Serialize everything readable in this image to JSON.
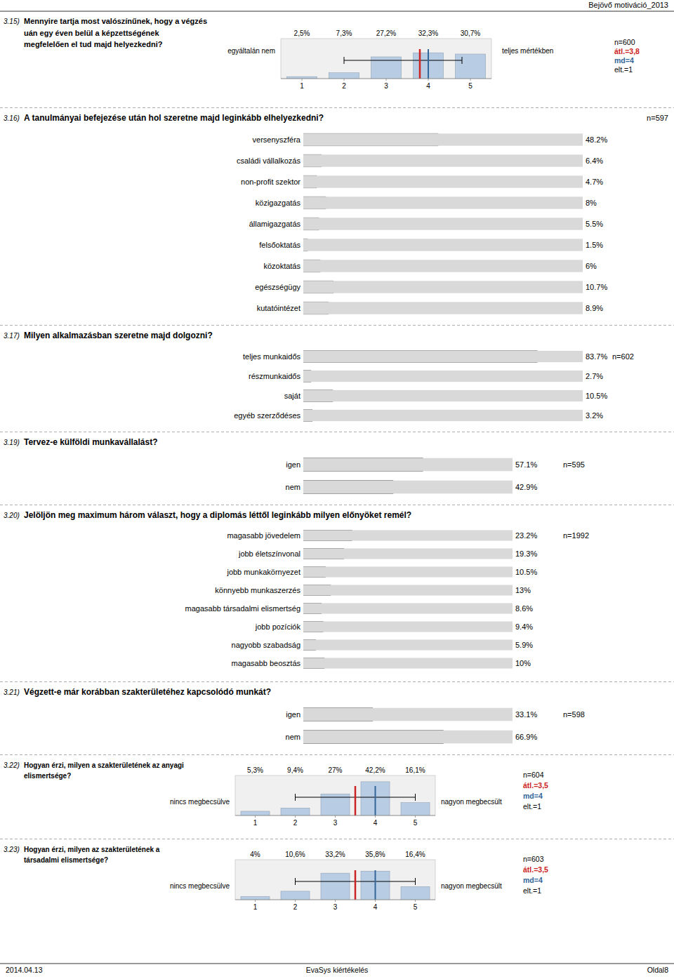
{
  "header": "Bejövő motiváció_2013",
  "footer": {
    "left": "2014.04.13",
    "center": "EvaSys kiértékelés",
    "right": "Oldal8"
  },
  "chart_data": [
    {
      "type": "bar",
      "number": "3.15)",
      "title": "Mennyire tartja most valószínűnek, hogy a végzés\nuán egy éven belül a képzettségének\nmegfelelően el tud majd helyezkedni?",
      "left_label": "egyáltalán nem",
      "right_label": "teljes mértékben",
      "x": [
        1,
        2,
        3,
        4,
        5
      ],
      "values": [
        2.5,
        7.3,
        27.2,
        32.3,
        30.7
      ],
      "value_labels": [
        "2,5%",
        "7,3%",
        "27,2%",
        "32,3%",
        "30,7%"
      ],
      "data_labels": true,
      "xlim": [
        0.5,
        5.5
      ],
      "xticks": [
        1,
        2,
        3,
        4,
        5
      ],
      "ylim": [
        0,
        50
      ],
      "tick_labels": "x",
      "color": "#b8cce4",
      "mean": {
        "value": 3.8,
        "label": "átl.=3,8",
        "color": "#cc2222"
      },
      "median": {
        "value": 4.0,
        "label": "md=4",
        "color": "#336699"
      },
      "error_bar": [
        2.0,
        4.8
      ],
      "n_label": "n=600",
      "sd_label": "elt.=1"
    },
    {
      "type": "bar",
      "orientation": "horizontal",
      "number": "3.16)",
      "title": "A tanulmányai befejezése után hol szeretne majd leginkább elhelyezkedni?",
      "n_label": "n=597",
      "categories": [
        "versenyszféra",
        "családi vállalkozás",
        "non-profit szektor",
        "közigazgatás",
        "államigazgatás",
        "felsőoktatás",
        "közoktatás",
        "egészségügy",
        "kutatóintézet"
      ],
      "values": [
        48.2,
        6.4,
        4.7,
        8.0,
        5.5,
        1.5,
        6.0,
        10.7,
        8.9
      ],
      "value_labels": [
        "48.2%",
        "6.4%",
        "4.7%",
        "8%",
        "5.5%",
        "1.5%",
        "6%",
        "10.7%",
        "8.9%"
      ],
      "data_labels": true,
      "xlim": [
        0,
        100
      ],
      "tick_labels": "y"
    },
    {
      "type": "bar",
      "orientation": "horizontal",
      "number": "3.17)",
      "title": "Milyen alkalmazásban szeretne majd dolgozni?",
      "n_label": "n=602",
      "categories": [
        "teljes munkaidős",
        "részmunkaidős",
        "saját",
        "egyéb szerződéses"
      ],
      "values": [
        83.7,
        2.7,
        10.5,
        3.2
      ],
      "value_labels": [
        "83.7%",
        "2.7%",
        "10.5%",
        "3.2%"
      ],
      "data_labels": true,
      "xlim": [
        0,
        100
      ],
      "tick_labels": "y"
    },
    {
      "type": "bar",
      "orientation": "horizontal",
      "number": "3.19)",
      "title": "Tervez-e külföldi munkavállalást?",
      "n_label": "n=595",
      "categories": [
        "igen",
        "nem"
      ],
      "values": [
        57.1,
        42.9
      ],
      "value_labels": [
        "57.1%",
        "42.9%"
      ],
      "data_labels": true,
      "xlim": [
        0,
        100
      ],
      "tick_labels": "y"
    },
    {
      "type": "bar",
      "orientation": "horizontal",
      "number": "3.20)",
      "title": "Jelöljön meg maximum három választ, hogy a diplomás léttől leginkább milyen előnyöket remél?",
      "n_label": "n=1992",
      "categories": [
        "magasabb jövedelem",
        "jobb életszínvonal",
        "jobb munkakörnyezet",
        "könnyebb munkaszerzés",
        "magasabb társadalmi elismertség",
        "jobb pozíciók",
        "nagyobb szabadság",
        "magasabb beosztás"
      ],
      "values": [
        23.2,
        19.3,
        10.5,
        13.0,
        8.6,
        9.4,
        5.9,
        10.0
      ],
      "value_labels": [
        "23.2%",
        "19.3%",
        "10.5%",
        "13%",
        "8.6%",
        "9.4%",
        "5.9%",
        "10%"
      ],
      "data_labels": true,
      "xlim": [
        0,
        100
      ],
      "tick_labels": "y"
    },
    {
      "type": "bar",
      "orientation": "horizontal",
      "number": "3.21)",
      "title": "Végzett-e már korábban szakterületéhez kapcsolódó munkát?",
      "n_label": "n=598",
      "categories": [
        "igen",
        "nem"
      ],
      "values": [
        33.1,
        66.9
      ],
      "value_labels": [
        "33.1%",
        "66.9%"
      ],
      "data_labels": true,
      "xlim": [
        0,
        100
      ],
      "tick_labels": "y"
    },
    {
      "type": "bar",
      "number": "3.22)",
      "title": "Hogyan érzi, milyen a szakterületének az anyagi\nelismertsége?",
      "left_label": "nincs megbecsülve",
      "right_label": "nagyon megbecsült",
      "x": [
        1,
        2,
        3,
        4,
        5
      ],
      "values": [
        5.3,
        9.4,
        27.0,
        42.2,
        16.1
      ],
      "value_labels": [
        "5,3%",
        "9,4%",
        "27%",
        "42,2%",
        "16,1%"
      ],
      "data_labels": true,
      "xlim": [
        0.5,
        5.5
      ],
      "xticks": [
        1,
        2,
        3,
        4,
        5
      ],
      "ylim": [
        0,
        50
      ],
      "tick_labels": "x",
      "color": "#b8cce4",
      "mean": {
        "value": 3.5,
        "label": "átl.=3,5",
        "color": "#cc2222"
      },
      "median": {
        "value": 4.0,
        "label": "md=4",
        "color": "#336699"
      },
      "error_bar": [
        2.0,
        5.0
      ],
      "n_label": "n=604",
      "sd_label": "elt.=1"
    },
    {
      "type": "bar",
      "number": "3.23)",
      "title": "Hogyan érzi, milyen az szakterületének a\ntársadalmi elismertsége?",
      "left_label": "nincs megbecsülve",
      "right_label": "nagyon megbecsült",
      "x": [
        1,
        2,
        3,
        4,
        5
      ],
      "values": [
        4.0,
        10.6,
        33.2,
        35.8,
        16.4
      ],
      "value_labels": [
        "4%",
        "10,6%",
        "33,2%",
        "35,8%",
        "16,4%"
      ],
      "data_labels": true,
      "xlim": [
        0.5,
        5.5
      ],
      "xticks": [
        1,
        2,
        3,
        4,
        5
      ],
      "ylim": [
        0,
        50
      ],
      "tick_labels": "x",
      "color": "#b8cce4",
      "mean": {
        "value": 3.5,
        "label": "átl.=3,5",
        "color": "#cc2222"
      },
      "median": {
        "value": 4.0,
        "label": "md=4",
        "color": "#336699"
      },
      "error_bar": [
        2.0,
        5.0
      ],
      "n_label": "n=603",
      "sd_label": "elt.=1"
    }
  ]
}
